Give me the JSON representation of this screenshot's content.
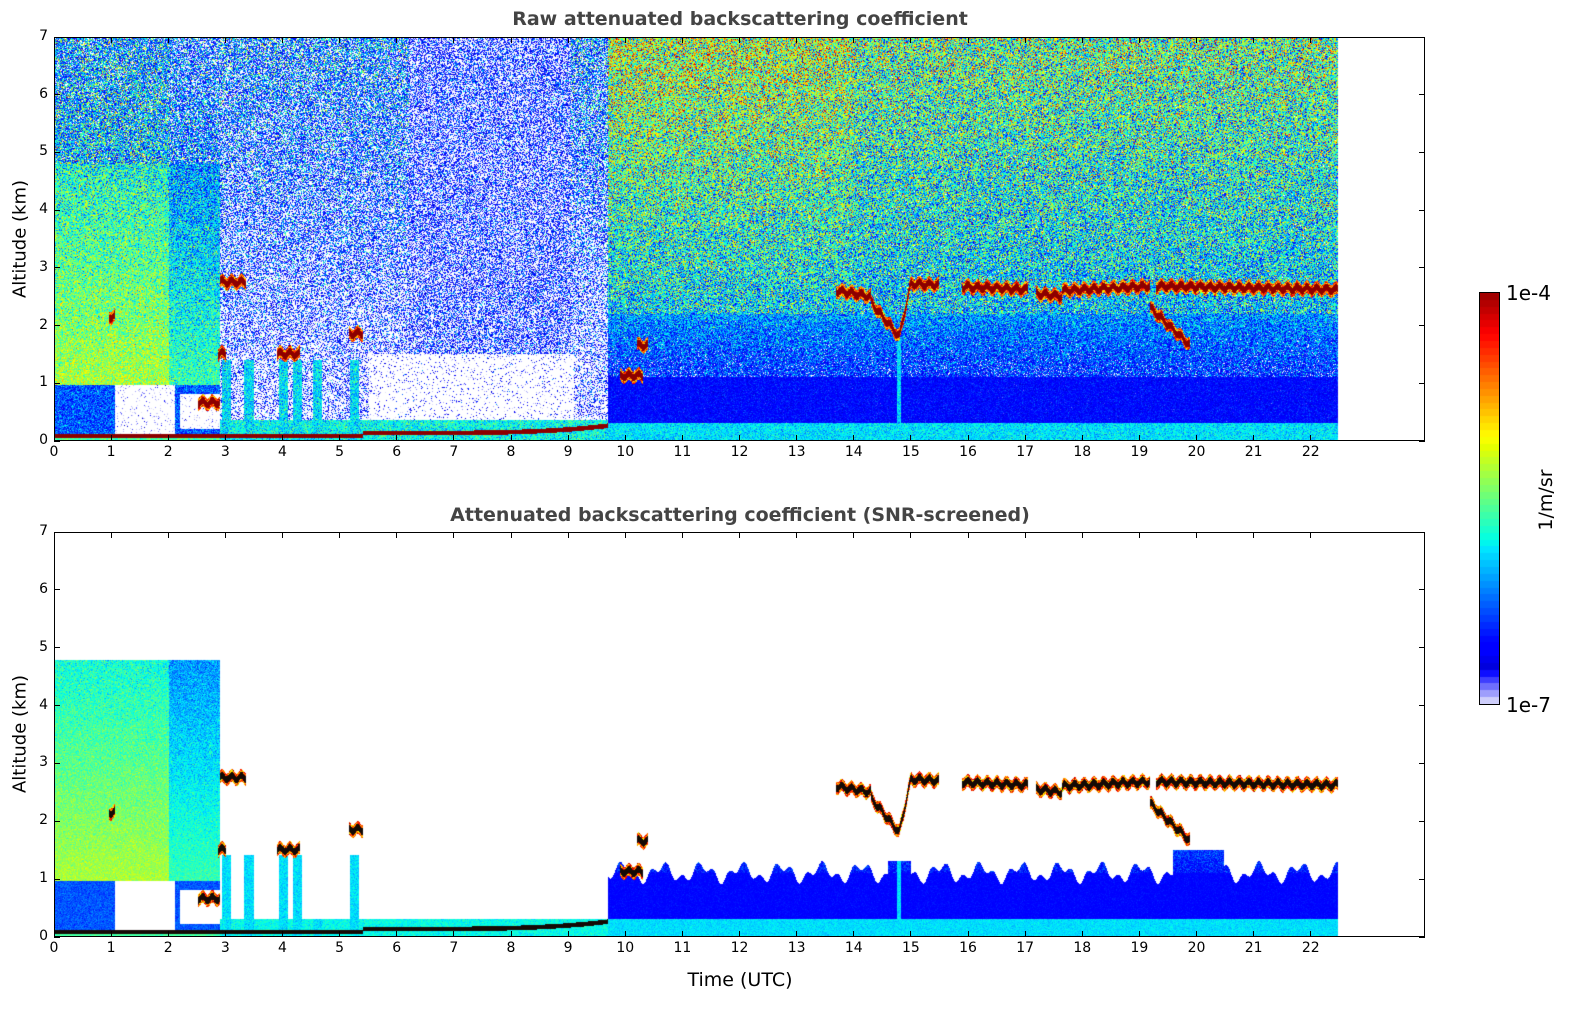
{
  "chart_data": [
    {
      "type": "heatmap",
      "title": "Raw attenuated backscattering coefficient",
      "xlabel": "",
      "ylabel": "Altitude (km)",
      "xlim": [
        0,
        24
      ],
      "ylim": [
        0,
        7
      ],
      "xticks": [
        "0",
        "1",
        "2",
        "3",
        "4",
        "5",
        "6",
        "7",
        "8",
        "9",
        "10",
        "11",
        "12",
        "13",
        "14",
        "15",
        "16",
        "17",
        "18",
        "19",
        "20",
        "21",
        "22"
      ],
      "yticks": [
        "0",
        "1",
        "2",
        "3",
        "4",
        "5",
        "6",
        "7"
      ],
      "screened": false
    },
    {
      "type": "heatmap",
      "title": "Attenuated backscattering coefficient (SNR-screened)",
      "xlabel": "Time (UTC)",
      "ylabel": "Altitude (km)",
      "xlim": [
        0,
        24
      ],
      "ylim": [
        0,
        7
      ],
      "xticks": [
        "0",
        "1",
        "2",
        "3",
        "4",
        "5",
        "6",
        "7",
        "8",
        "9",
        "10",
        "11",
        "12",
        "13",
        "14",
        "15",
        "16",
        "17",
        "18",
        "19",
        "20",
        "21",
        "22"
      ],
      "yticks": [
        "0",
        "1",
        "2",
        "3",
        "4",
        "5",
        "6",
        "7"
      ],
      "screened": true
    }
  ],
  "colorbar": {
    "label": "1/m/sr",
    "max_label": "1e-4",
    "min_label": "1e-7",
    "log_range": [
      -7,
      -4
    ],
    "colormap": "jet"
  },
  "features": {
    "data_end_hour": 22.5,
    "cloud_layers": [
      {
        "t0": 0.95,
        "t1": 1.05,
        "z0": 2.15,
        "z1": 2.15
      },
      {
        "t0": 2.5,
        "t1": 2.9,
        "z0": 0.65,
        "z1": 0.65
      },
      {
        "t0": 2.9,
        "t1": 3.35,
        "z0": 2.75,
        "z1": 2.75
      },
      {
        "t0": 2.85,
        "t1": 3.0,
        "z0": 1.5,
        "z1": 1.5
      },
      {
        "t0": 3.9,
        "t1": 4.3,
        "z0": 1.5,
        "z1": 1.5
      },
      {
        "t0": 5.15,
        "t1": 5.4,
        "z0": 1.85,
        "z1": 1.85
      },
      {
        "t0": 9.9,
        "t1": 10.3,
        "z0": 1.12,
        "z1": 1.12
      },
      {
        "t0": 10.2,
        "t1": 10.4,
        "z0": 1.65,
        "z1": 1.65
      },
      {
        "t0": 13.7,
        "t1": 14.3,
        "z0": 2.6,
        "z1": 2.5
      },
      {
        "t0": 14.3,
        "t1": 14.8,
        "z0": 2.4,
        "z1": 1.8
      },
      {
        "t0": 14.8,
        "t1": 15.0,
        "z0": 1.8,
        "z1": 2.7
      },
      {
        "t0": 15.0,
        "t1": 15.5,
        "z0": 2.72,
        "z1": 2.7
      },
      {
        "t0": 15.9,
        "t1": 17.05,
        "z0": 2.67,
        "z1": 2.62
      },
      {
        "t0": 17.2,
        "t1": 17.65,
        "z0": 2.55,
        "z1": 2.5
      },
      {
        "t0": 17.65,
        "t1": 19.2,
        "z0": 2.6,
        "z1": 2.68
      },
      {
        "t0": 19.2,
        "t1": 19.9,
        "z0": 2.3,
        "z1": 1.65
      },
      {
        "t0": 19.3,
        "t1": 22.5,
        "z0": 2.68,
        "z1": 2.62
      }
    ],
    "surface_layer": [
      {
        "t0": 0,
        "t1": 5.4,
        "z0": 0.07,
        "z1": 0.07
      },
      {
        "t0": 5.4,
        "t1": 9.7,
        "z0": 0.12,
        "z1": 0.25
      }
    ],
    "screened_top_km": [
      {
        "t0": 0,
        "t1": 2.9,
        "z": 4.8
      },
      {
        "t0": 2.9,
        "t1": 9.7,
        "z": 0.3
      },
      {
        "t0": 9.7,
        "t1": 22.5,
        "z": 1.1
      }
    ]
  },
  "colors": {
    "axis": "#000000",
    "title": "#444444"
  }
}
